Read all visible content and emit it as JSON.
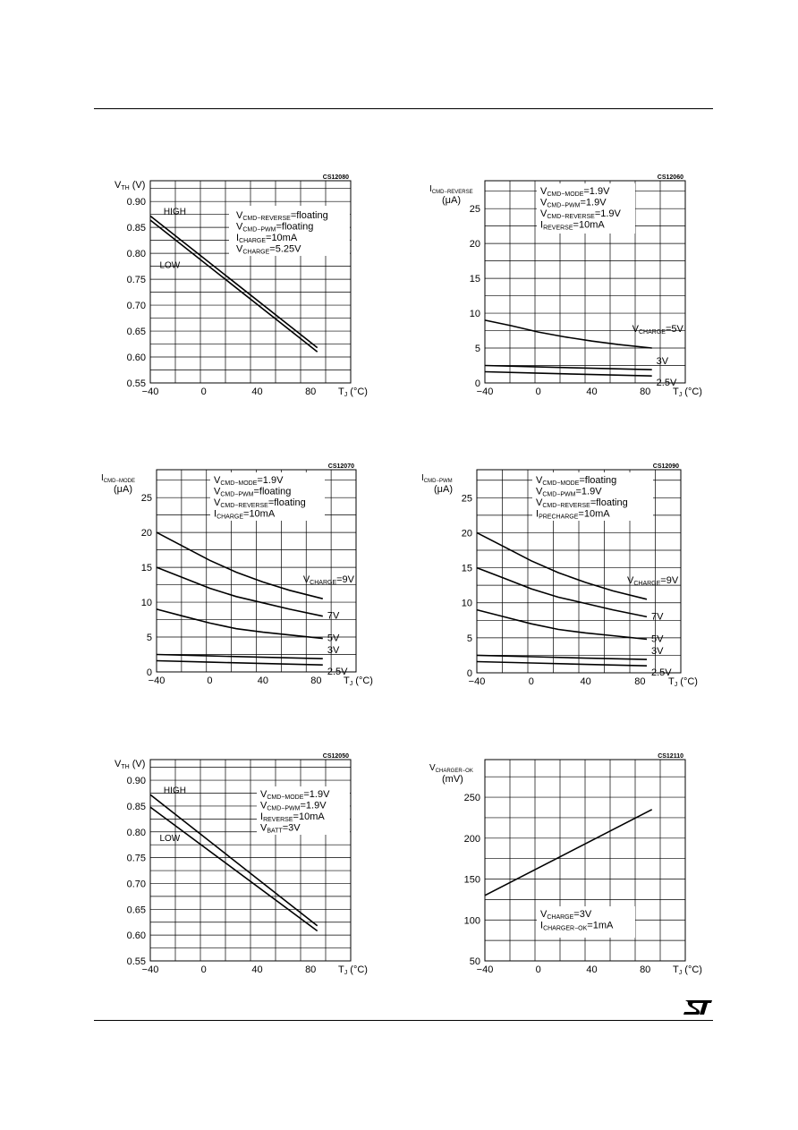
{
  "logo_icon": "st-logo-icon",
  "chart_data": [
    {
      "type": "line",
      "code": "CS12080",
      "ylabel_main": "V",
      "ylabel_sub": "TH",
      "ylabel_tail": " (V)",
      "ylabel_unit": "",
      "xlabel_main": "T",
      "xlabel_sub": "J",
      "xlabel_tail": " (°C)",
      "xlim": [
        -40,
        110
      ],
      "ylim": [
        0.55,
        0.94
      ],
      "xticks": [
        -40,
        0,
        40,
        80
      ],
      "xtick_labels": [
        "−40",
        "0",
        "40",
        "80"
      ],
      "yticks": [
        0.55,
        0.6,
        0.65,
        0.7,
        0.75,
        0.8,
        0.85,
        0.9
      ],
      "ytick_labels": [
        "0.55",
        "0.60",
        "0.65",
        "0.70",
        "0.75",
        "0.80",
        "0.85",
        "0.90"
      ],
      "conditions": [
        {
          "main": "V",
          "sub": "CMD−REVERSE",
          "tail": "=floating"
        },
        {
          "main": "V",
          "sub": "CMD−PWM",
          "tail": "=floating"
        },
        {
          "main": "I",
          "sub": "CHARGE",
          "tail": "=10mA"
        },
        {
          "main": "V",
          "sub": "CHARGE",
          "tail": "=5.25V"
        }
      ],
      "annotations": [
        {
          "text": "HIGH",
          "x": -30,
          "y": 0.875
        },
        {
          "text": "LOW",
          "x": -33,
          "y": 0.772
        }
      ],
      "series": [
        {
          "x": [
            -40,
            85
          ],
          "y": [
            0.872,
            0.618
          ]
        },
        {
          "x": [
            -40,
            85
          ],
          "y": [
            0.864,
            0.61
          ]
        }
      ]
    },
    {
      "type": "line",
      "code": "CS12060",
      "ylabel_main": "I",
      "ylabel_sub": "CMD−REVERSE",
      "ylabel_tail": "",
      "ylabel_unit": "(μA)",
      "xlabel_main": "T",
      "xlabel_sub": "J",
      "xlabel_tail": " (°C)",
      "xlim": [
        -40,
        110
      ],
      "ylim": [
        0,
        29
      ],
      "xticks": [
        -40,
        0,
        40,
        80
      ],
      "xtick_labels": [
        "−40",
        "0",
        "40",
        "80"
      ],
      "yticks": [
        0,
        5,
        10,
        15,
        20,
        25
      ],
      "ytick_labels": [
        "0",
        "5",
        "10",
        "15",
        "20",
        "25"
      ],
      "conditions": [
        {
          "main": "V",
          "sub": "CMD−MODE",
          "tail": "=1.9V"
        },
        {
          "main": "V",
          "sub": "CMD−PWM",
          "tail": "=1.9V"
        },
        {
          "main": "V",
          "sub": "CMD−REVERSE",
          "tail": "=1.9V"
        },
        {
          "main": "I",
          "sub": "REVERSE",
          "tail": "=10mA"
        }
      ],
      "annotations": [],
      "series": [
        {
          "main": "V",
          "sub": "CHARGE",
          "tail": "=5V",
          "x": [
            -40,
            -20,
            0,
            20,
            40,
            60,
            85
          ],
          "y": [
            9.0,
            8.2,
            7.3,
            6.6,
            6.0,
            5.5,
            5.0
          ]
        },
        {
          "main": "",
          "sub": "",
          "tail": "3V",
          "x": [
            -40,
            0,
            40,
            85
          ],
          "y": [
            2.5,
            2.3,
            2.1,
            1.9
          ]
        },
        {
          "main": "",
          "sub": "",
          "tail": "2.5V",
          "x": [
            -40,
            0,
            40,
            85
          ],
          "y": [
            1.6,
            1.4,
            1.2,
            1.0
          ]
        }
      ]
    },
    {
      "type": "line",
      "code": "CS12070",
      "ylabel_main": "I",
      "ylabel_sub": "CMD−MODE",
      "ylabel_tail": "",
      "ylabel_unit": "(μA)",
      "xlabel_main": "T",
      "xlabel_sub": "J",
      "xlabel_tail": " (°C)",
      "xlim": [
        -40,
        110
      ],
      "ylim": [
        0,
        29
      ],
      "xticks": [
        -40,
        0,
        40,
        80
      ],
      "xtick_labels": [
        "−40",
        "0",
        "40",
        "80"
      ],
      "yticks": [
        0,
        5,
        10,
        15,
        20,
        25
      ],
      "ytick_labels": [
        "0",
        "5",
        "10",
        "15",
        "20",
        "25"
      ],
      "conditions": [
        {
          "main": "V",
          "sub": "CMD−MODE",
          "tail": "=1.9V"
        },
        {
          "main": "V",
          "sub": "CMD−PWM",
          "tail": "=floating"
        },
        {
          "main": "V",
          "sub": "CMD−REVERSE",
          "tail": "=floating"
        },
        {
          "main": "I",
          "sub": "CHARGE",
          "tail": "=10mA"
        }
      ],
      "annotations": [],
      "series": [
        {
          "main": "V",
          "sub": "CHARGE",
          "tail": "=9V",
          "x": [
            -40,
            -20,
            0,
            20,
            40,
            60,
            85
          ],
          "y": [
            20.0,
            18.0,
            16.0,
            14.3,
            12.9,
            11.7,
            10.5
          ]
        },
        {
          "main": "",
          "sub": "",
          "tail": "7V",
          "x": [
            -40,
            -20,
            0,
            20,
            40,
            60,
            85
          ],
          "y": [
            15.0,
            13.5,
            12.0,
            10.8,
            9.9,
            9.0,
            8.0
          ]
        },
        {
          "main": "",
          "sub": "",
          "tail": "5V",
          "x": [
            -40,
            -20,
            0,
            20,
            40,
            60,
            85
          ],
          "y": [
            9.0,
            8.0,
            7.0,
            6.2,
            5.7,
            5.3,
            4.8
          ]
        },
        {
          "main": "",
          "sub": "",
          "tail": "3V",
          "x": [
            -40,
            0,
            40,
            85
          ],
          "y": [
            2.5,
            2.3,
            2.1,
            1.9
          ]
        },
        {
          "main": "",
          "sub": "",
          "tail": "2.5V",
          "x": [
            -40,
            0,
            40,
            85
          ],
          "y": [
            1.6,
            1.4,
            1.2,
            1.0
          ]
        }
      ]
    },
    {
      "type": "line",
      "code": "CS12090",
      "ylabel_main": "I",
      "ylabel_sub": "CMD−PWM",
      "ylabel_tail": "",
      "ylabel_unit": "(μA)",
      "xlabel_main": "T",
      "xlabel_sub": "J",
      "xlabel_tail": " (°C)",
      "xlim": [
        -40,
        110
      ],
      "ylim": [
        0,
        29
      ],
      "xticks": [
        -40,
        0,
        40,
        80
      ],
      "xtick_labels": [
        "−40",
        "0",
        "40",
        "80"
      ],
      "yticks": [
        0,
        5,
        10,
        15,
        20,
        25
      ],
      "ytick_labels": [
        "0",
        "5",
        "10",
        "15",
        "20",
        "25"
      ],
      "conditions": [
        {
          "main": "V",
          "sub": "CMD−MODE",
          "tail": "=floating"
        },
        {
          "main": "V",
          "sub": "CMD−PWM",
          "tail": "=1.9V"
        },
        {
          "main": "V",
          "sub": "CMD−REVERSE",
          "tail": "=floating"
        },
        {
          "main": "I",
          "sub": "PRECHARGE",
          "tail": "=10mA"
        }
      ],
      "annotations": [],
      "series": [
        {
          "main": "V",
          "sub": "CHARGE",
          "tail": "=9V",
          "x": [
            -40,
            -20,
            0,
            20,
            40,
            60,
            85
          ],
          "y": [
            20.0,
            18.0,
            16.0,
            14.3,
            12.9,
            11.7,
            10.5
          ]
        },
        {
          "main": "",
          "sub": "",
          "tail": "7V",
          "x": [
            -40,
            -20,
            0,
            20,
            40,
            60,
            85
          ],
          "y": [
            15.0,
            13.5,
            12.0,
            10.8,
            9.9,
            9.0,
            8.0
          ]
        },
        {
          "main": "",
          "sub": "",
          "tail": "5V",
          "x": [
            -40,
            -20,
            0,
            20,
            40,
            60,
            85
          ],
          "y": [
            9.0,
            8.0,
            7.0,
            6.2,
            5.7,
            5.3,
            4.8
          ]
        },
        {
          "main": "",
          "sub": "",
          "tail": "3V",
          "x": [
            -40,
            0,
            40,
            85
          ],
          "y": [
            2.5,
            2.3,
            2.1,
            1.9
          ]
        },
        {
          "main": "",
          "sub": "",
          "tail": "2.5V",
          "x": [
            -40,
            0,
            40,
            85
          ],
          "y": [
            1.6,
            1.4,
            1.2,
            1.0
          ]
        }
      ]
    },
    {
      "type": "line",
      "code": "CS12050",
      "ylabel_main": "V",
      "ylabel_sub": "TH",
      "ylabel_tail": " (V)",
      "ylabel_unit": "",
      "xlabel_main": "T",
      "xlabel_sub": "J",
      "xlabel_tail": " (°C)",
      "xlim": [
        -40,
        110
      ],
      "ylim": [
        0.55,
        0.94
      ],
      "xticks": [
        -40,
        0,
        40,
        80
      ],
      "xtick_labels": [
        "−40",
        "0",
        "40",
        "80"
      ],
      "yticks": [
        0.55,
        0.6,
        0.65,
        0.7,
        0.75,
        0.8,
        0.85,
        0.9
      ],
      "ytick_labels": [
        "0.55",
        "0.60",
        "0.65",
        "0.70",
        "0.75",
        "0.80",
        "0.85",
        "0.90"
      ],
      "conditions": [
        {
          "main": "V",
          "sub": "CMD−MODE",
          "tail": "=1.9V"
        },
        {
          "main": "V",
          "sub": "CMD−PWM",
          "tail": "=1.9V"
        },
        {
          "main": "I",
          "sub": "REVERSE",
          "tail": "=10mA"
        },
        {
          "main": "V",
          "sub": "BATT",
          "tail": "=3V"
        }
      ],
      "annotations": [
        {
          "text": "HIGH",
          "x": -30,
          "y": 0.875
        },
        {
          "text": "LOW",
          "x": -33,
          "y": 0.782
        }
      ],
      "series": [
        {
          "x": [
            -40,
            85
          ],
          "y": [
            0.872,
            0.618
          ]
        },
        {
          "x": [
            -40,
            85
          ],
          "y": [
            0.848,
            0.608
          ]
        }
      ]
    },
    {
      "type": "line",
      "code": "CS12110",
      "ylabel_main": "V",
      "ylabel_sub": "CHARGER−OK",
      "ylabel_tail": "",
      "ylabel_unit": "(mV)",
      "xlabel_main": "T",
      "xlabel_sub": "J",
      "xlabel_tail": " (°C)",
      "xlim": [
        -40,
        110
      ],
      "ylim": [
        50,
        296
      ],
      "xticks": [
        -40,
        0,
        40,
        80
      ],
      "xtick_labels": [
        "−40",
        "0",
        "40",
        "80"
      ],
      "yticks": [
        50,
        100,
        150,
        200,
        250
      ],
      "ytick_labels": [
        "50",
        "100",
        "150",
        "200",
        "250"
      ],
      "conditions": [
        {
          "main": "V",
          "sub": "CHARGE",
          "tail": "=3V"
        },
        {
          "main": "I",
          "sub": "CHARGER−OK",
          "tail": "=1mA"
        }
      ],
      "annotations": [],
      "series": [
        {
          "x": [
            -40,
            85
          ],
          "y": [
            130,
            235
          ]
        }
      ]
    }
  ]
}
